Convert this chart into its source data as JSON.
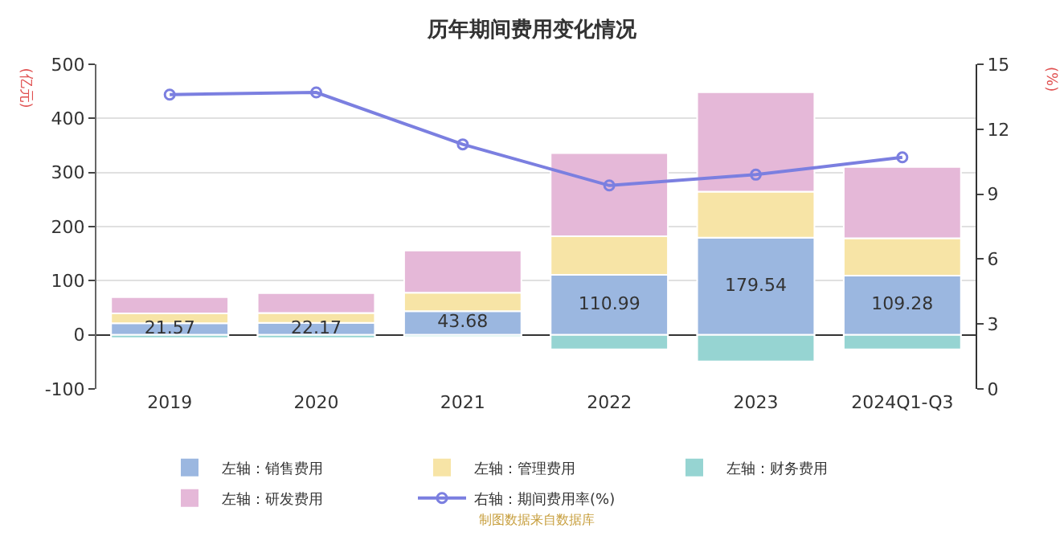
{
  "chart_data": {
    "type": "bar",
    "title": "历年期间费用变化情况",
    "stacked": true,
    "categories": [
      "2019",
      "2020",
      "2021",
      "2022",
      "2023",
      "2024Q1-Q3"
    ],
    "series": [
      {
        "name": "左轴：销售费用",
        "color": "#9bb7e0",
        "values": [
          21.57,
          22.17,
          43.68,
          110.99,
          179.54,
          109.28
        ],
        "value_labels": [
          "21.57",
          "22.17",
          "43.68",
          "110.99",
          "179.54",
          "109.28"
        ]
      },
      {
        "name": "左轴：管理费用",
        "color": "#f7e4a6",
        "values": [
          18,
          18,
          34,
          71,
          85,
          69
        ]
      },
      {
        "name": "左轴：财务费用",
        "color": "#96d4d2",
        "values": [
          -6,
          -6,
          -4,
          -27,
          -49,
          -27
        ]
      },
      {
        "name": "左轴：研发费用",
        "color": "#e5b8d8",
        "values": [
          30,
          37,
          78,
          154,
          184,
          132
        ]
      },
      {
        "name": "右轴：期间费用率(%)",
        "type": "line",
        "axis": "y2",
        "color": "#7b7fe0",
        "marker": "circle",
        "values": [
          13.6,
          13.7,
          11.3,
          9.4,
          9.9,
          10.7
        ]
      }
    ],
    "ylabel": "(亿元)",
    "y2label": "(%)",
    "ylim": [
      -100,
      500
    ],
    "yticks": [
      -100,
      0,
      100,
      200,
      300,
      400,
      500
    ],
    "y2lim": [
      0,
      15
    ],
    "y2ticks": [
      0,
      3,
      6,
      9,
      12,
      15
    ],
    "grid": "y",
    "legend": "bottom",
    "annotations": [
      "制图数据来自数据库"
    ]
  }
}
